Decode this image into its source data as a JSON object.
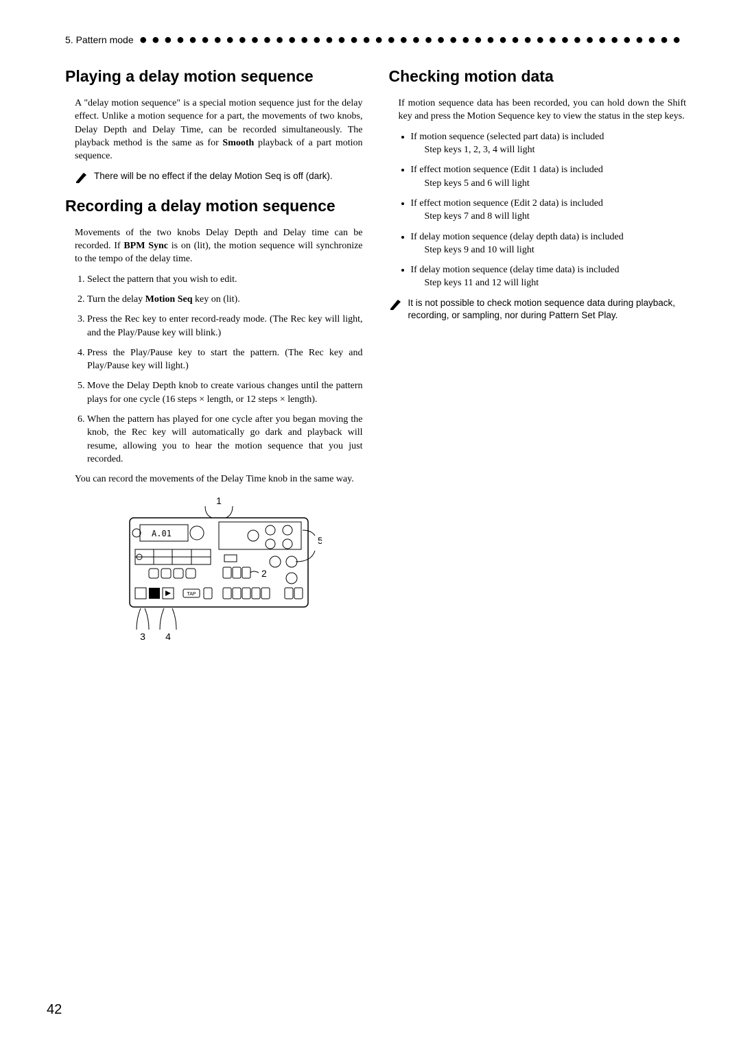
{
  "header": {
    "label": "5. Pattern mode"
  },
  "pageNumber": "42",
  "left": {
    "h1": "Playing a delay motion sequence",
    "p1a": "A \"delay motion sequence\" is a special motion sequence just for the delay effect. Unlike a motion sequence for a part, the movements of two knobs, Delay Depth and Delay Time, can be recorded simultaneously. The playback method is the same as for ",
    "p1b_bold": "Smooth",
    "p1c": " playback of a part motion sequence.",
    "note1": "There will be no effect if the delay Motion Seq is off (dark).",
    "h2": "Recording a delay motion sequence",
    "p2a": "Movements of the two knobs Delay Depth and Delay time can be recorded. If ",
    "p2b_bold": "BPM Sync",
    "p2c": " is on (lit), the motion sequence will synchronize to the tempo of the delay time.",
    "steps": [
      "Select the pattern that you wish to edit.",
      "Turn the delay <b>Motion Seq</b> key on (lit).",
      "Press the Rec key to enter record-ready mode. (The Rec key will light, and the Play/Pause key will blink.)",
      "Press the Play/Pause key to start the pattern. (The Rec key and Play/Pause key will light.)",
      "Move the Delay Depth knob to create various changes until the pattern plays for one cycle (16 steps × length, or 12 steps × length).",
      "When the pattern has played for one cycle after you began moving the knob, the Rec key will automatically go dark and playback will resume, allowing you to hear the motion sequence that you just recorded."
    ],
    "p3": "You can record the movements of the Delay Time knob in the same way.",
    "callouts": {
      "c1": "1",
      "c2": "2",
      "c3": "3",
      "c4": "4",
      "c5": "5"
    }
  },
  "right": {
    "h1": "Checking motion data",
    "p1": "If motion sequence data has been recorded, you can hold down the Shift key and press the Motion Sequence key to view the status in the step keys.",
    "bullets": [
      {
        "main": "If motion sequence (selected part data) is included",
        "sub": "Step keys 1, 2, 3, 4 will light"
      },
      {
        "main": "If effect motion sequence (Edit 1 data) is included",
        "sub": "Step keys 5 and 6 will light"
      },
      {
        "main": "If effect motion sequence (Edit 2 data) is included",
        "sub": "Step keys 7 and 8 will light"
      },
      {
        "main": "If delay motion sequence (delay depth data) is included",
        "sub": "Step keys 9 and 10 will light"
      },
      {
        "main": "If delay motion sequence (delay time data) is included",
        "sub": "Step keys 11 and 12 will light"
      }
    ],
    "note1": "It is not possible to check motion sequence data during playback, recording, or sampling, nor during Pattern Set Play."
  }
}
